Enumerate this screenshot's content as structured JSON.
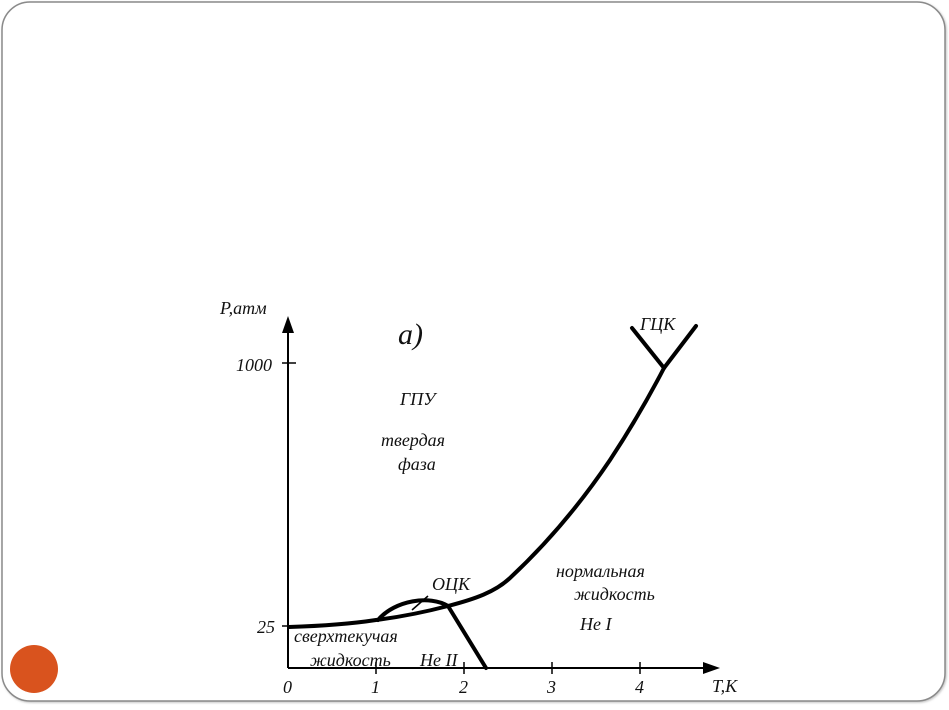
{
  "colors": {
    "accent_dot": "#d9531e",
    "frame": "#8a8a8a"
  },
  "diagram": {
    "panel_label": "а)",
    "y_axis_label": "P,атм",
    "x_axis_label": "T,K",
    "y_ticks": [
      "1000",
      "25"
    ],
    "x_ticks": [
      "0",
      "1",
      "2",
      "3",
      "4"
    ],
    "regions": {
      "hcp": "ГПУ",
      "solid_line1": "твердая",
      "solid_line2": "фаза",
      "fcc": "ГЦК",
      "bcc": "ОЦК",
      "normal_line1": "нормальная",
      "normal_line2": "жидкость",
      "he_one": "He I",
      "super_line1": "сверхтекучая",
      "super_line2": "жидкость",
      "he_two": "He II"
    }
  }
}
